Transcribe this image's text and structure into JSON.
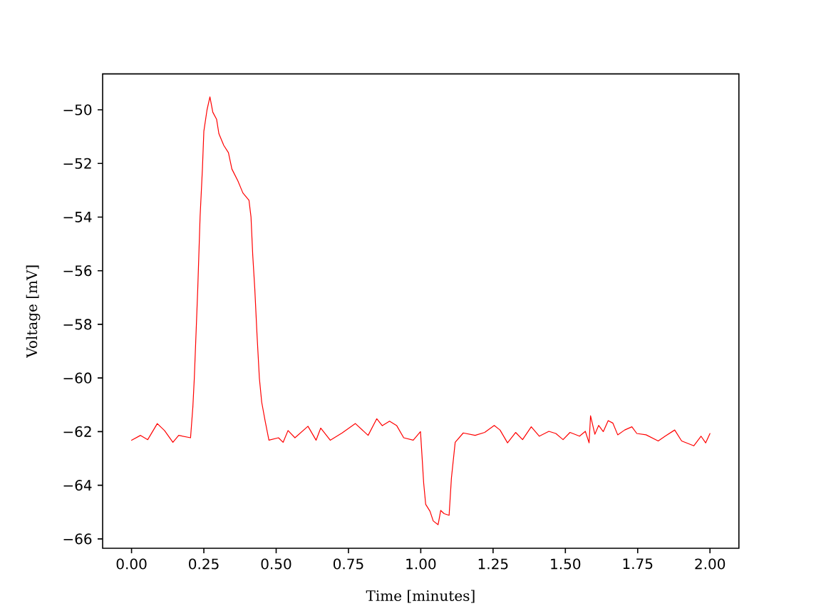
{
  "chart_data": {
    "type": "line",
    "xlabel": "Time [minutes]",
    "ylabel": "Voltage [mV]",
    "color": "#ff0000",
    "line_style": "solid",
    "x": [
      0.0,
      0.031,
      0.056,
      0.089,
      0.114,
      0.143,
      0.163,
      0.204,
      0.212,
      0.217,
      0.224,
      0.229,
      0.237,
      0.245,
      0.25,
      0.261,
      0.271,
      0.281,
      0.294,
      0.302,
      0.319,
      0.335,
      0.347,
      0.368,
      0.385,
      0.406,
      0.413,
      0.419,
      0.426,
      0.434,
      0.442,
      0.45,
      0.462,
      0.475,
      0.508,
      0.524,
      0.541,
      0.565,
      0.61,
      0.638,
      0.654,
      0.687,
      0.728,
      0.774,
      0.818,
      0.848,
      0.867,
      0.892,
      0.917,
      0.941,
      0.974,
      0.999,
      1.004,
      1.01,
      1.017,
      1.032,
      1.043,
      1.06,
      1.069,
      1.081,
      1.098,
      1.106,
      1.119,
      1.147,
      1.188,
      1.221,
      1.254,
      1.274,
      1.3,
      1.328,
      1.352,
      1.382,
      1.41,
      1.443,
      1.467,
      1.492,
      1.516,
      1.549,
      1.569,
      1.582,
      1.587,
      1.602,
      1.615,
      1.631,
      1.648,
      1.664,
      1.681,
      1.705,
      1.73,
      1.747,
      1.779,
      1.821,
      1.845,
      1.878,
      1.902,
      1.944,
      1.969,
      1.985,
      2.0
    ],
    "values": [
      -62.32,
      -62.14,
      -62.3,
      -61.7,
      -61.96,
      -62.4,
      -62.14,
      -62.23,
      -61.08,
      -60.01,
      -58.06,
      -56.65,
      -53.99,
      -52.21,
      -50.8,
      -50.0,
      -49.52,
      -50.09,
      -50.35,
      -50.89,
      -51.33,
      -51.6,
      -52.21,
      -52.66,
      -53.1,
      -53.37,
      -53.99,
      -55.41,
      -56.65,
      -58.42,
      -60.01,
      -60.9,
      -61.61,
      -62.32,
      -62.23,
      -62.4,
      -61.96,
      -62.23,
      -61.8,
      -62.32,
      -61.87,
      -62.32,
      -62.05,
      -61.7,
      -62.14,
      -61.52,
      -61.78,
      -61.61,
      -61.78,
      -62.23,
      -62.32,
      -62.0,
      -62.85,
      -63.91,
      -64.71,
      -64.97,
      -65.33,
      -65.47,
      -64.94,
      -65.06,
      -65.12,
      -63.73,
      -62.4,
      -62.05,
      -62.14,
      -62.03,
      -61.77,
      -61.94,
      -62.42,
      -62.03,
      -62.3,
      -61.82,
      -62.17,
      -61.99,
      -62.07,
      -62.3,
      -62.03,
      -62.17,
      -61.99,
      -62.42,
      -61.41,
      -62.1,
      -61.77,
      -62.0,
      -61.59,
      -61.68,
      -62.12,
      -61.94,
      -61.82,
      -62.07,
      -62.12,
      -62.35,
      -62.17,
      -61.94,
      -62.35,
      -62.53,
      -62.17,
      -62.42,
      -62.07
    ],
    "xlim": [
      -0.1,
      2.1
    ],
    "ylim": [
      -66.35,
      -48.66
    ],
    "xticks": [
      {
        "value": 0,
        "label": "0.00"
      },
      {
        "value": 0.25,
        "label": "0.25"
      },
      {
        "value": 0.5,
        "label": "0.50"
      },
      {
        "value": 0.75,
        "label": "0.75"
      },
      {
        "value": 1,
        "label": "1.00"
      },
      {
        "value": 1.25,
        "label": "1.25"
      },
      {
        "value": 1.5,
        "label": "1.50"
      },
      {
        "value": 1.75,
        "label": "1.75"
      },
      {
        "value": 2,
        "label": "2.00"
      }
    ],
    "yticks": [
      {
        "value": -66,
        "label": "−66"
      },
      {
        "value": -64,
        "label": "−64"
      },
      {
        "value": -62,
        "label": "−62"
      },
      {
        "value": -60,
        "label": "−60"
      },
      {
        "value": -58,
        "label": "−58"
      },
      {
        "value": -56,
        "label": "−56"
      },
      {
        "value": -54,
        "label": "−54"
      },
      {
        "value": -52,
        "label": "−52"
      },
      {
        "value": -50,
        "label": "−50"
      }
    ]
  }
}
